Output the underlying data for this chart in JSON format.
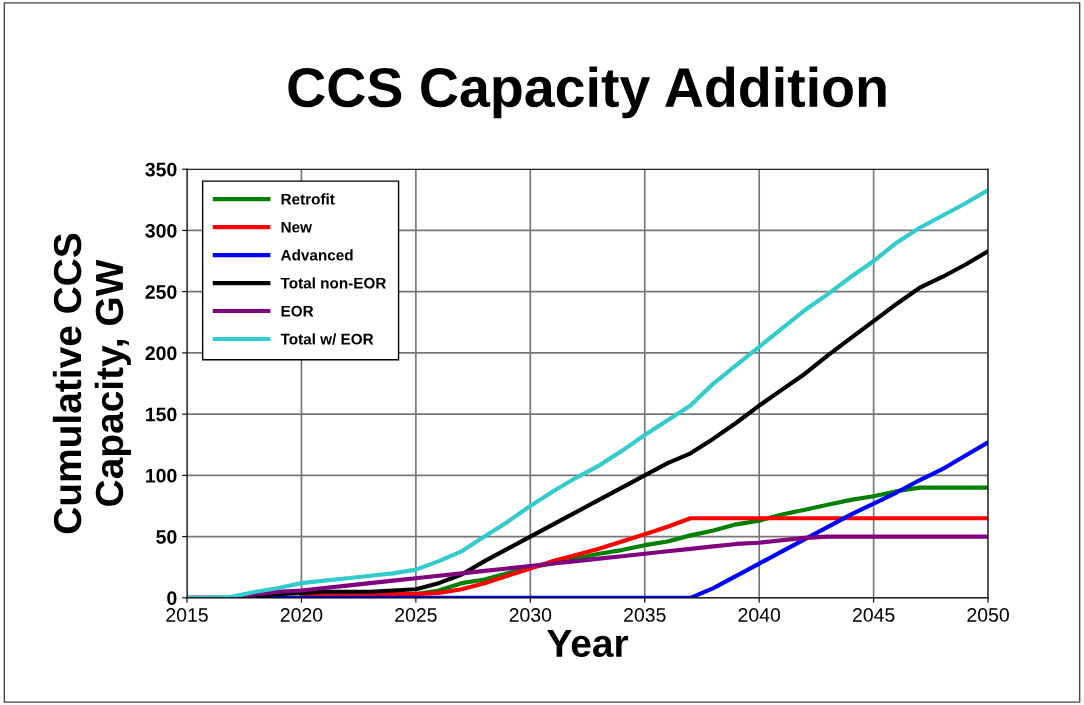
{
  "chart_data": {
    "type": "line",
    "title": "CCS Capacity Addition",
    "xlabel": "Year",
    "ylabel": "Cumulative CCS Capacity, GW",
    "x": [
      2015,
      2016,
      2017,
      2018,
      2019,
      2020,
      2021,
      2022,
      2023,
      2024,
      2025,
      2026,
      2027,
      2028,
      2029,
      2030,
      2031,
      2032,
      2033,
      2034,
      2035,
      2036,
      2037,
      2038,
      2039,
      2040,
      2041,
      2042,
      2043,
      2044,
      2045,
      2046,
      2047,
      2048,
      2049,
      2050
    ],
    "series": [
      {
        "name": "Retrofit",
        "color": "#008000",
        "values": [
          null,
          null,
          null,
          null,
          null,
          null,
          null,
          null,
          null,
          3,
          3,
          6,
          12,
          15,
          20,
          25,
          28,
          32,
          36,
          39,
          43,
          46,
          51,
          55,
          60,
          63,
          68,
          72,
          76,
          80,
          83,
          87,
          90,
          90,
          90,
          90
        ]
      },
      {
        "name": "New",
        "color": "#ff0000",
        "values": [
          null,
          null,
          null,
          null,
          null,
          2,
          2,
          2,
          3,
          3,
          3,
          4,
          7,
          12,
          18,
          24,
          30,
          35,
          40,
          46,
          52,
          58,
          65,
          65,
          65,
          65,
          65,
          65,
          65,
          65,
          65,
          65,
          65,
          65,
          65,
          65
        ]
      },
      {
        "name": "Advanced",
        "color": "#0000ff",
        "values": [
          null,
          null,
          null,
          0,
          0,
          0,
          0,
          0,
          0,
          0,
          0,
          0,
          0,
          0,
          0,
          0,
          0,
          0,
          0,
          0,
          0,
          0,
          0,
          8,
          18,
          28,
          38,
          48,
          58,
          68,
          77,
          86,
          96,
          105,
          116,
          127
        ]
      },
      {
        "name": "Total non-EOR",
        "color": "#000000",
        "values": [
          0,
          0,
          0,
          2,
          3,
          4,
          5,
          5,
          5,
          6,
          7,
          12,
          19,
          30,
          40,
          50,
          60,
          70,
          80,
          90,
          100,
          110,
          118,
          130,
          143,
          157,
          170,
          183,
          198,
          212,
          226,
          240,
          253,
          262,
          272,
          283
        ]
      },
      {
        "name": "EOR",
        "color": "#800080",
        "values": [
          0,
          0,
          0,
          3,
          5,
          6,
          8,
          10,
          12,
          14,
          16,
          18,
          20,
          22,
          24,
          26,
          28,
          30,
          32,
          34,
          36,
          38,
          40,
          42,
          44,
          45,
          47,
          49,
          50,
          50,
          50,
          50,
          50,
          50,
          50,
          50
        ]
      },
      {
        "name": "Total w/ EOR",
        "color": "#33cccc",
        "values": [
          0,
          0,
          1,
          5,
          8,
          12,
          14,
          16,
          18,
          20,
          23,
          30,
          38,
          50,
          62,
          75,
          87,
          98,
          108,
          120,
          133,
          145,
          157,
          175,
          190,
          205,
          220,
          235,
          248,
          262,
          275,
          290,
          302,
          312,
          322,
          333
        ]
      }
    ],
    "xlim": [
      2015,
      2050
    ],
    "xticks": [
      2015,
      2020,
      2025,
      2030,
      2035,
      2040,
      2045,
      2050
    ],
    "ylim": [
      0,
      350
    ],
    "yticks": [
      0,
      50,
      100,
      150,
      200,
      250,
      300,
      350
    ],
    "grid": true,
    "legend": "top left",
    "marker": "none",
    "line_style": "solid"
  }
}
